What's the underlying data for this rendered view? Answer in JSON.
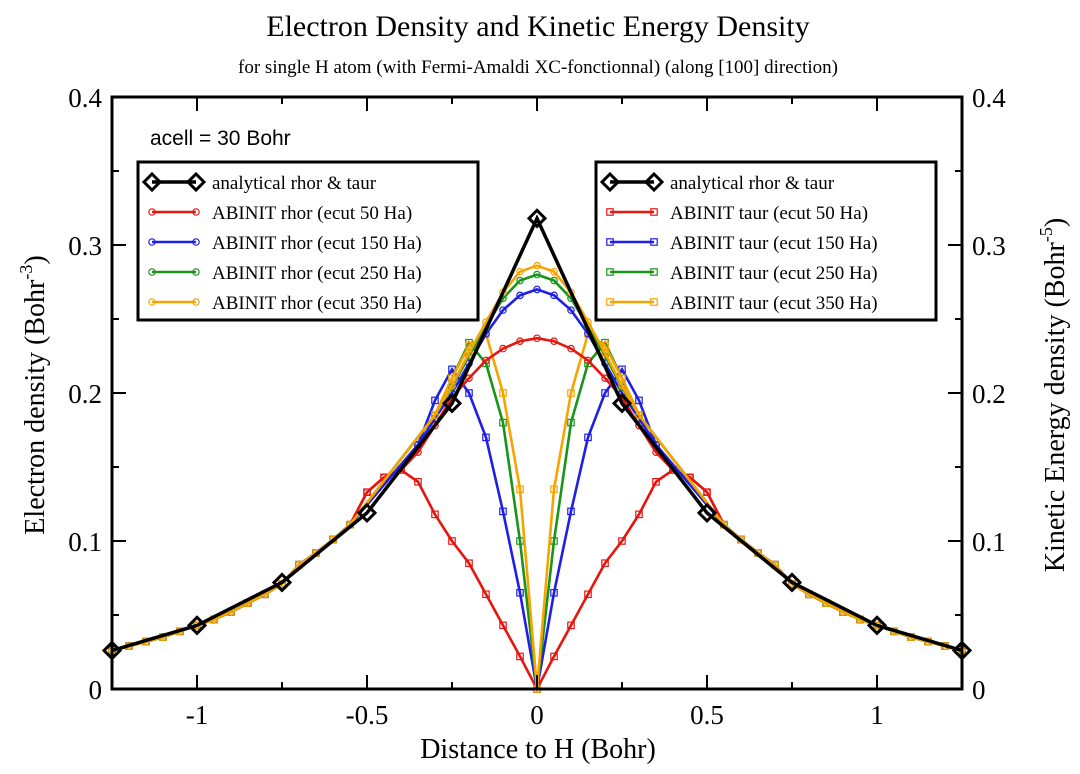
{
  "chart_data": {
    "type": "line",
    "title": "Electron Density and Kinetic Energy Density",
    "subtitle": "for single H atom (with Fermi-Amaldi XC-fonctionnal) (along [100] direction)",
    "xlabel": "Distance to H (Bohr)",
    "ylabel_left": "Electron density (Bohr",
    "ylabel_left_exp": "-3",
    "ylabel_left_close": ")",
    "ylabel_right": "Kinetic Energy density (Bohr",
    "ylabel_right_exp": "-5",
    "ylabel_right_close": ")",
    "annotation": "acell = 30 Bohr",
    "xlim": [
      -1.25,
      1.25
    ],
    "ylim": [
      0,
      0.4
    ],
    "x_ticks": [
      -1,
      -0.5,
      0,
      0.5,
      1
    ],
    "x_tick_labels": [
      "-1",
      "-0.5",
      "0",
      "0.5",
      "1"
    ],
    "y_ticks": [
      0,
      0.1,
      0.2,
      0.3,
      0.4
    ],
    "y_tick_labels": [
      "0",
      "0.1",
      "0.2",
      "0.3",
      "0.4"
    ],
    "grid": false,
    "analytical": {
      "color": "#000000",
      "x": [
        -1.25,
        -1.0,
        -0.75,
        -0.5,
        -0.25,
        0.0,
        0.25,
        0.5,
        0.75,
        1.0,
        1.25
      ],
      "y": [
        0.026,
        0.043,
        0.072,
        0.119,
        0.193,
        0.318,
        0.193,
        0.119,
        0.072,
        0.043,
        0.026
      ]
    },
    "rho_series": [
      {
        "color": "#e8150f",
        "cut": 0.55,
        "points": [
          [
            0.0,
            0.237
          ],
          [
            0.05,
            0.235
          ],
          [
            0.1,
            0.23
          ],
          [
            0.15,
            0.222
          ],
          [
            0.2,
            0.21
          ],
          [
            0.25,
            0.197
          ],
          [
            0.3,
            0.178
          ],
          [
            0.35,
            0.16
          ],
          [
            0.4,
            0.148
          ],
          [
            0.45,
            0.143
          ],
          [
            0.5,
            0.133
          ]
        ]
      },
      {
        "color": "#1f1fe6",
        "cut": 0.4,
        "points": [
          [
            0.0,
            0.27
          ],
          [
            0.05,
            0.266
          ],
          [
            0.1,
            0.256
          ],
          [
            0.15,
            0.24
          ],
          [
            0.2,
            0.22
          ],
          [
            0.25,
            0.2
          ],
          [
            0.3,
            0.183
          ],
          [
            0.35,
            0.165
          ]
        ]
      },
      {
        "color": "#1a941a",
        "cut": 0.35,
        "points": [
          [
            0.0,
            0.28
          ],
          [
            0.05,
            0.276
          ],
          [
            0.1,
            0.264
          ],
          [
            0.15,
            0.245
          ],
          [
            0.2,
            0.225
          ],
          [
            0.25,
            0.204
          ],
          [
            0.3,
            0.185
          ]
        ]
      },
      {
        "color": "#f7a400",
        "cut": 0.35,
        "points": [
          [
            0.0,
            0.286
          ],
          [
            0.05,
            0.282
          ],
          [
            0.1,
            0.268
          ],
          [
            0.15,
            0.248
          ],
          [
            0.2,
            0.227
          ],
          [
            0.25,
            0.205
          ],
          [
            0.3,
            0.185
          ]
        ]
      }
    ],
    "tau_series": [
      {
        "color": "#e8150f",
        "points": [
          [
            0.0,
            0.0
          ],
          [
            0.05,
            0.022
          ],
          [
            0.1,
            0.043
          ],
          [
            0.15,
            0.064
          ],
          [
            0.2,
            0.085
          ],
          [
            0.25,
            0.1
          ],
          [
            0.3,
            0.118
          ],
          [
            0.35,
            0.14
          ],
          [
            0.4,
            0.148
          ],
          [
            0.45,
            0.143
          ],
          [
            0.5,
            0.133
          ]
        ]
      },
      {
        "color": "#1f1fe6",
        "points": [
          [
            0.0,
            0.0
          ],
          [
            0.05,
            0.065
          ],
          [
            0.1,
            0.12
          ],
          [
            0.15,
            0.17
          ],
          [
            0.2,
            0.2
          ],
          [
            0.25,
            0.216
          ],
          [
            0.3,
            0.195
          ],
          [
            0.35,
            0.165
          ]
        ]
      },
      {
        "color": "#1a941a",
        "points": [
          [
            0.0,
            0.0
          ],
          [
            0.05,
            0.1
          ],
          [
            0.1,
            0.18
          ],
          [
            0.15,
            0.22
          ],
          [
            0.2,
            0.234
          ],
          [
            0.25,
            0.21
          ],
          [
            0.3,
            0.185
          ]
        ]
      },
      {
        "color": "#f7a400",
        "points": [
          [
            0.0,
            0.0
          ],
          [
            0.05,
            0.135
          ],
          [
            0.1,
            0.2
          ],
          [
            0.15,
            0.24
          ],
          [
            0.2,
            0.232
          ],
          [
            0.25,
            0.21
          ],
          [
            0.3,
            0.185
          ]
        ]
      }
    ],
    "tail": {
      "x": [
        0.55,
        0.6,
        0.65,
        0.7,
        0.75,
        0.8,
        0.85,
        0.9,
        0.95,
        1.0,
        1.05,
        1.1,
        1.15,
        1.2,
        1.25
      ],
      "y": [
        0.111,
        0.101,
        0.092,
        0.084,
        0.071,
        0.064,
        0.058,
        0.052,
        0.047,
        0.043,
        0.039,
        0.035,
        0.032,
        0.029,
        0.026
      ]
    },
    "legend_left": {
      "placement": "top-left",
      "entries": [
        {
          "label": "analytical rhor & taur",
          "color": "#000000",
          "marker": "diamond"
        },
        {
          "label": "ABINIT rhor (ecut 50 Ha)",
          "color": "#e8150f",
          "marker": "circle"
        },
        {
          "label": "ABINIT rhor (ecut 150 Ha)",
          "color": "#1f1fe6",
          "marker": "circle"
        },
        {
          "label": "ABINIT rhor (ecut 250 Ha)",
          "color": "#1a941a",
          "marker": "circle"
        },
        {
          "label": "ABINIT rhor (ecut 350 Ha)",
          "color": "#f7a400",
          "marker": "circle"
        }
      ]
    },
    "legend_right": {
      "placement": "top-right",
      "entries": [
        {
          "label": "analytical rhor & taur",
          "color": "#000000",
          "marker": "diamond"
        },
        {
          "label": "ABINIT taur (ecut 50 Ha)",
          "color": "#e8150f",
          "marker": "square"
        },
        {
          "label": "ABINIT taur (ecut 150 Ha)",
          "color": "#1f1fe6",
          "marker": "square"
        },
        {
          "label": "ABINIT taur (ecut 250 Ha)",
          "color": "#1a941a",
          "marker": "square"
        },
        {
          "label": "ABINIT taur (ecut 350 Ha)",
          "color": "#f7a400",
          "marker": "square"
        }
      ]
    }
  }
}
